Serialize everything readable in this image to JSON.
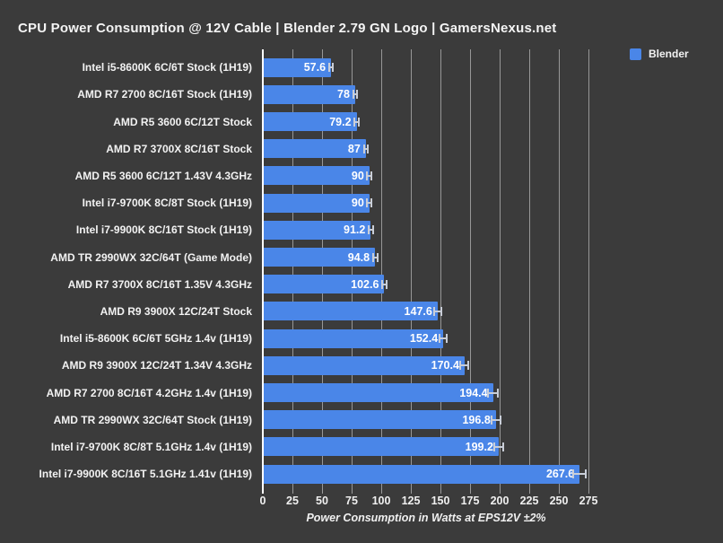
{
  "header": {
    "title": "CPU Power Consumption @ 12V Cable | Blender 2.79 GN Logo | GamersNexus.net"
  },
  "legend": {
    "position": "top-right",
    "items": [
      {
        "label": "Blender",
        "color": "#4a86e8"
      }
    ]
  },
  "chart_data": {
    "type": "bar",
    "orientation": "horizontal",
    "title": "CPU Power Consumption @ 12V Cable | Blender 2.79 GN Logo | GamersNexus.net",
    "xlabel": "Power Consumption in Watts at EPS12V ±2%",
    "ylabel": "",
    "xlim": [
      0,
      287
    ],
    "xticks": [
      0,
      25,
      50,
      75,
      100,
      125,
      150,
      175,
      200,
      225,
      250,
      275
    ],
    "grid": true,
    "legend_position": "top-right",
    "error_bars": "±2% of value",
    "series_name": "Blender",
    "categories": [
      "Intel i5-8600K 6C/6T Stock (1H19)",
      "AMD R7 2700 8C/16T Stock (1H19)",
      "AMD R5 3600 6C/12T Stock",
      "AMD R7 3700X 8C/16T Stock",
      "AMD R5 3600 6C/12T 1.43V 4.3GHz",
      "Intel i7-9700K 8C/8T Stock (1H19)",
      "Intel i7-9900K 8C/16T Stock (1H19)",
      "AMD TR 2990WX 32C/64T (Game Mode)",
      "AMD R7 3700X 8C/16T 1.35V 4.3GHz",
      "AMD R9 3900X 12C/24T Stock",
      "Intel i5-8600K 6C/6T 5GHz 1.4v (1H19)",
      "AMD R9 3900X 12C/24T 1.34V 4.3GHz",
      "AMD R7 2700 8C/16T 4.2GHz 1.4v (1H19)",
      "AMD TR 2990WX 32C/64T Stock (1H19)",
      "Intel i7-9700K 8C/8T 5.1GHz 1.4v (1H19)",
      "Intel i7-9900K 8C/16T 5.1GHz 1.41v (1H19)"
    ],
    "values": [
      57.6,
      78,
      79.2,
      87,
      90,
      90,
      91.2,
      94.8,
      102.6,
      147.6,
      152.4,
      170.4,
      194.4,
      196.8,
      199.2,
      267.6
    ],
    "value_labels": [
      "57.6",
      "78",
      "79.2",
      "87",
      "90",
      "90",
      "91.2",
      "94.8",
      "102.6",
      "147.6",
      "152.4",
      "170.4",
      "194.4",
      "196.8",
      "199.2",
      "267.6"
    ]
  },
  "colors": {
    "background": "#3b3b3b",
    "bar": "#4a86e8",
    "gridline": "#979797",
    "axis_line": "#ffffff",
    "text": "#f2f2f2",
    "error_bar": "#c9ced8"
  }
}
